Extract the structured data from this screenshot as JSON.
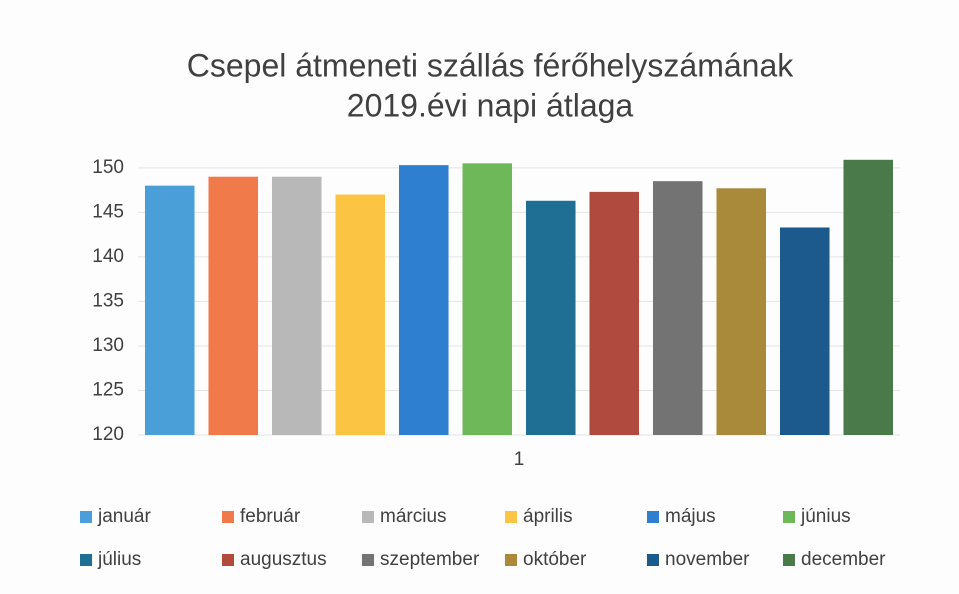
{
  "chart_data": {
    "type": "bar",
    "title": [
      "Csepel átmeneti szállás férőhelyszámának",
      "2019.évi napi átlaga"
    ],
    "categories": [
      "1"
    ],
    "series": [
      {
        "name": "január",
        "color": "#4a9fd8",
        "values": [
          148
        ]
      },
      {
        "name": "február",
        "color": "#f07a4a",
        "values": [
          149
        ]
      },
      {
        "name": "március",
        "color": "#b8b8b8",
        "values": [
          149
        ]
      },
      {
        "name": "április",
        "color": "#fcc443",
        "values": [
          147
        ]
      },
      {
        "name": "május",
        "color": "#2e7fd0",
        "values": [
          150.3
        ]
      },
      {
        "name": "június",
        "color": "#6fb85a",
        "values": [
          150.5
        ]
      },
      {
        "name": "július",
        "color": "#1f6e94",
        "values": [
          146.3
        ]
      },
      {
        "name": "augusztus",
        "color": "#b04a3e",
        "values": [
          147.3
        ]
      },
      {
        "name": "szeptember",
        "color": "#737373",
        "values": [
          148.5
        ]
      },
      {
        "name": "október",
        "color": "#a88a3a",
        "values": [
          147.7
        ]
      },
      {
        "name": "november",
        "color": "#1c5a8e",
        "values": [
          143.3
        ]
      },
      {
        "name": "december",
        "color": "#4a7a4a",
        "values": [
          150.9
        ]
      }
    ],
    "ylim": [
      120,
      152
    ],
    "yticks": [
      120,
      125,
      130,
      135,
      140,
      145,
      150
    ],
    "grid": true,
    "legend": "bottom"
  }
}
